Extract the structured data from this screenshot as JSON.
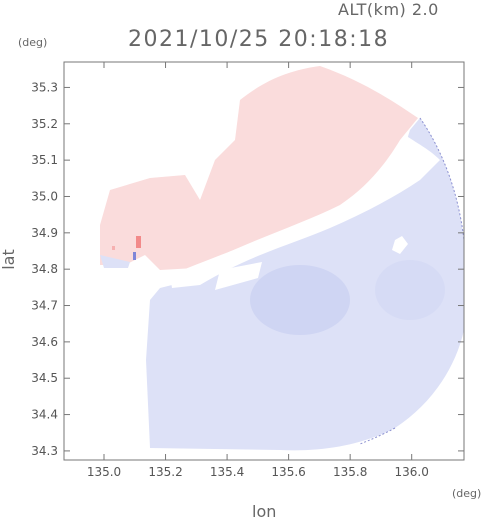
{
  "header": {
    "altitude": "ALT(km) 2.0",
    "datetime": "2021/10/25 20:18:18"
  },
  "axes": {
    "y_unit": "(deg)",
    "x_unit": "(deg)",
    "y_label": "lat",
    "x_label": "lon",
    "x_ticks": [
      135.0,
      135.2,
      135.4,
      135.6,
      135.8,
      136.0
    ],
    "y_ticks": [
      34.3,
      34.4,
      34.5,
      34.6,
      34.7,
      34.8,
      34.9,
      35.0,
      35.1,
      35.2,
      35.3
    ],
    "x_range": [
      134.87,
      136.17
    ],
    "y_range": [
      34.275,
      35.37
    ]
  },
  "colors": {
    "approaching": "#dde1f7",
    "receding": "#fadcdc",
    "zero": "#ffffff",
    "strong_receding": "#f28a8a",
    "strong_approaching": "#7f86d8"
  }
}
